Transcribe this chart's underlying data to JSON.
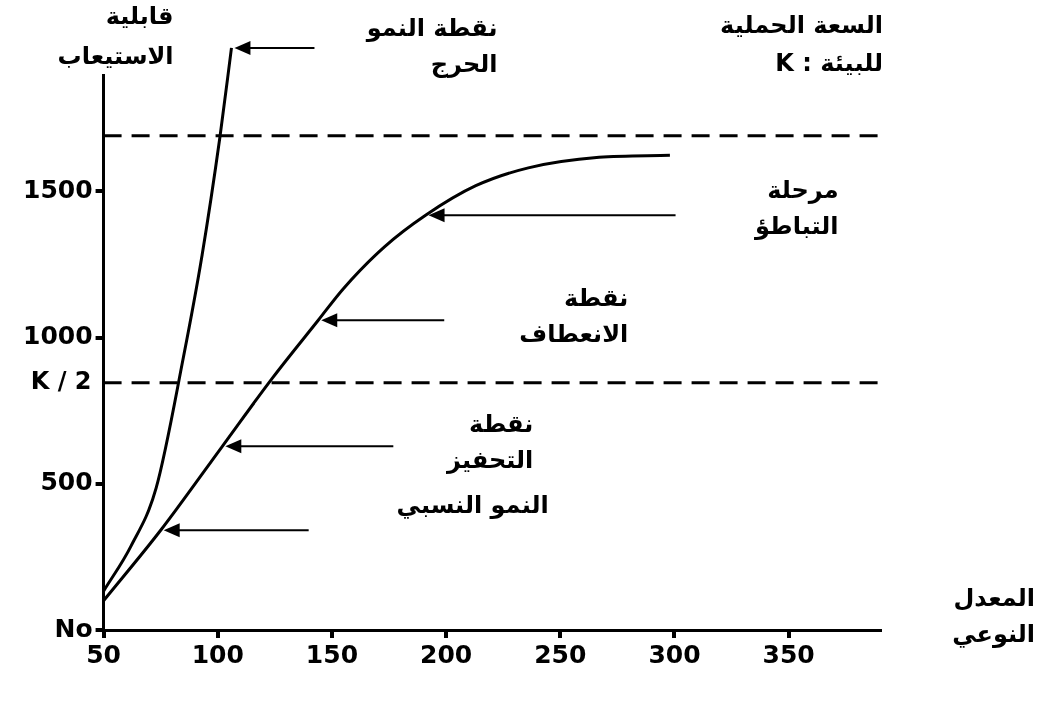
{
  "chart_data": {
    "type": "line",
    "ylabel": "قابلية الاستيعاب",
    "xlabel": "المعدل النوعي",
    "xlim": [
      50,
      390
    ],
    "xticks": [
      50,
      100,
      150,
      200,
      250,
      {
        "value": 300,
        "label": "300"
      },
      350
    ],
    "ylim": [
      0,
      2000
    ],
    "yticks": [
      {
        "value": 0,
        "label": "No"
      },
      500,
      1000,
      1500
    ],
    "grid": false,
    "legend": false,
    "marker": "none",
    "line_style": "solid",
    "series": [
      {
        "color": "#000000",
        "x": [
          50,
          62,
          73,
          85,
          93,
          101,
          106
        ],
        "values": [
          133,
          287,
          485,
          934,
          1275,
          1688,
          1990
        ]
      },
      {
        "color": "#000000",
        "x": [
          50,
          75,
          102,
          124,
          144,
          155,
          173,
          191,
          213,
          236,
          267,
          298
        ],
        "values": [
          100,
          341,
          628,
          862,
          1059,
          1167,
          1310,
          1418,
          1519,
          1580,
          1616,
          1623
        ]
      }
    ],
    "ref_lines": [
      {
        "axis": "y",
        "value": 1690,
        "label": "السعة الحملية للبيئة : K",
        "line_style": "dashed",
        "color": "#000000"
      },
      {
        "axis": "y",
        "value": 845,
        "label": "K / 2",
        "line_style": "dashed",
        "color": "#000000"
      }
    ],
    "annotations": [
      "نقطة النمو الحرج",
      "مرحلة التباطؤ",
      "نقطة الانعطاف",
      "نقطة التحفيز",
      "النمو النسبي"
    ]
  }
}
